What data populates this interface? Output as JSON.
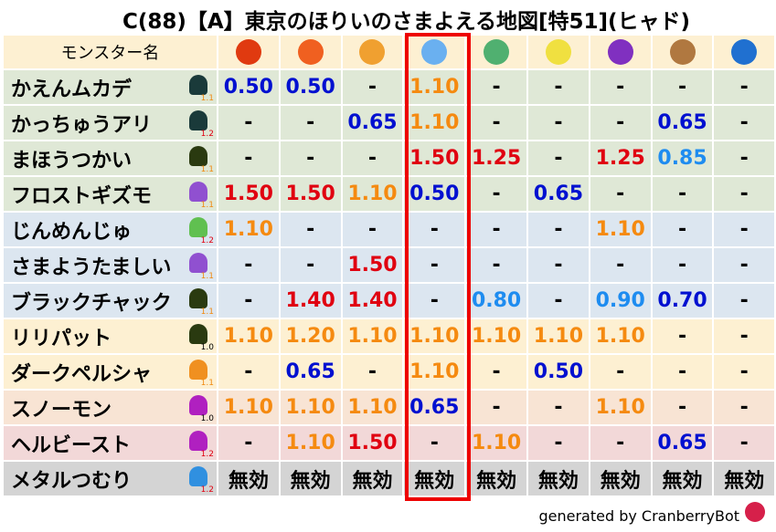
{
  "title": "C(88)【A】東京のほりいのさまよえる地図[特51](ヒャド)",
  "header": {
    "name_col": "モンスター名",
    "elements": [
      {
        "icon": "fire-ball-icon",
        "color": "#e03a10"
      },
      {
        "icon": "flame-icon",
        "color": "#f06020"
      },
      {
        "icon": "explosion-icon",
        "color": "#f0a030"
      },
      {
        "icon": "ice-icon",
        "color": "#6ab0f0"
      },
      {
        "icon": "wind-icon",
        "color": "#50b070"
      },
      {
        "icon": "light-icon",
        "color": "#f0e040"
      },
      {
        "icon": "dark-icon",
        "color": "#8030c0"
      },
      {
        "icon": "earth-icon",
        "color": "#b07840"
      },
      {
        "icon": "water-icon",
        "color": "#2070d0"
      }
    ],
    "highlighted_column": 3
  },
  "rows": [
    {
      "name": "かえんムカデ",
      "icon": "bug-icon",
      "icon_color": "#1a3a3a",
      "level": "1.1",
      "bg": "#dfe8d6",
      "values": [
        "0.50",
        "0.50",
        "-",
        "1.10",
        "-",
        "-",
        "-",
        "-",
        "-"
      ]
    },
    {
      "name": "かっちゅうアリ",
      "icon": "bug-icon",
      "icon_color": "#1a3a3a",
      "level": "1.2",
      "bg": "#dfe8d6",
      "values": [
        "-",
        "-",
        "0.65",
        "1.10",
        "-",
        "-",
        "-",
        "0.65",
        "-"
      ]
    },
    {
      "name": "まほうつかい",
      "icon": "ghost-icon",
      "icon_color": "#2a3a10",
      "level": "1.1",
      "bg": "#dfe8d6",
      "values": [
        "-",
        "-",
        "-",
        "1.50",
        "1.25",
        "-",
        "1.25",
        "0.85",
        "-"
      ]
    },
    {
      "name": "フロストギズモ",
      "icon": "gas-icon",
      "icon_color": "#9050d0",
      "level": "1.1",
      "bg": "#dfe8d6",
      "values": [
        "1.50",
        "1.50",
        "1.10",
        "0.50",
        "-",
        "0.65",
        "-",
        "-",
        "-"
      ]
    },
    {
      "name": "じんめんじゅ",
      "icon": "leaf-icon",
      "icon_color": "#60c050",
      "level": "1.2",
      "bg": "#dce6f0",
      "values": [
        "1.10",
        "-",
        "-",
        "-",
        "-",
        "-",
        "1.10",
        "-",
        "-"
      ]
    },
    {
      "name": "さまようたましい",
      "icon": "gas-icon",
      "icon_color": "#9050d0",
      "level": "1.1",
      "bg": "#dce6f0",
      "values": [
        "-",
        "-",
        "1.50",
        "-",
        "-",
        "-",
        "-",
        "-",
        "-"
      ]
    },
    {
      "name": "ブラックチャック",
      "icon": "ghost-icon",
      "icon_color": "#2a3a10",
      "level": "1.1",
      "bg": "#dce6f0",
      "values": [
        "-",
        "1.40",
        "1.40",
        "-",
        "0.80",
        "-",
        "0.90",
        "0.70",
        "-"
      ]
    },
    {
      "name": "リリパット",
      "icon": "ghost-icon",
      "icon_color": "#2a3a10",
      "level": "1.0",
      "bg": "#fdf0d2",
      "values": [
        "1.10",
        "1.20",
        "1.10",
        "1.10",
        "1.10",
        "1.10",
        "1.10",
        "-",
        "-"
      ]
    },
    {
      "name": "ダークペルシャ",
      "icon": "paw-icon",
      "icon_color": "#f09020",
      "level": "1.1",
      "bg": "#fdf0d2",
      "values": [
        "-",
        "0.65",
        "-",
        "1.10",
        "-",
        "0.50",
        "-",
        "-",
        "-"
      ]
    },
    {
      "name": "スノーモン",
      "icon": "trident-icon",
      "icon_color": "#b020c0",
      "level": "1.0",
      "bg": "#f8e4d4",
      "values": [
        "1.10",
        "1.10",
        "1.10",
        "0.65",
        "-",
        "-",
        "1.10",
        "-",
        "-"
      ]
    },
    {
      "name": "ヘルビースト",
      "icon": "trident-icon",
      "icon_color": "#b020c0",
      "level": "1.2",
      "bg": "#f2d8d8",
      "values": [
        "-",
        "1.10",
        "1.50",
        "-",
        "1.10",
        "-",
        "-",
        "0.65",
        "-"
      ]
    },
    {
      "name": "メタルつむり",
      "icon": "slime-icon",
      "icon_color": "#3090e0",
      "level": "1.2",
      "bg": "#d4d4d4",
      "values": [
        "無効",
        "無効",
        "無効",
        "無効",
        "無効",
        "無効",
        "無効",
        "無効",
        "無効"
      ]
    }
  ],
  "footer": "generated by CranberryBot"
}
